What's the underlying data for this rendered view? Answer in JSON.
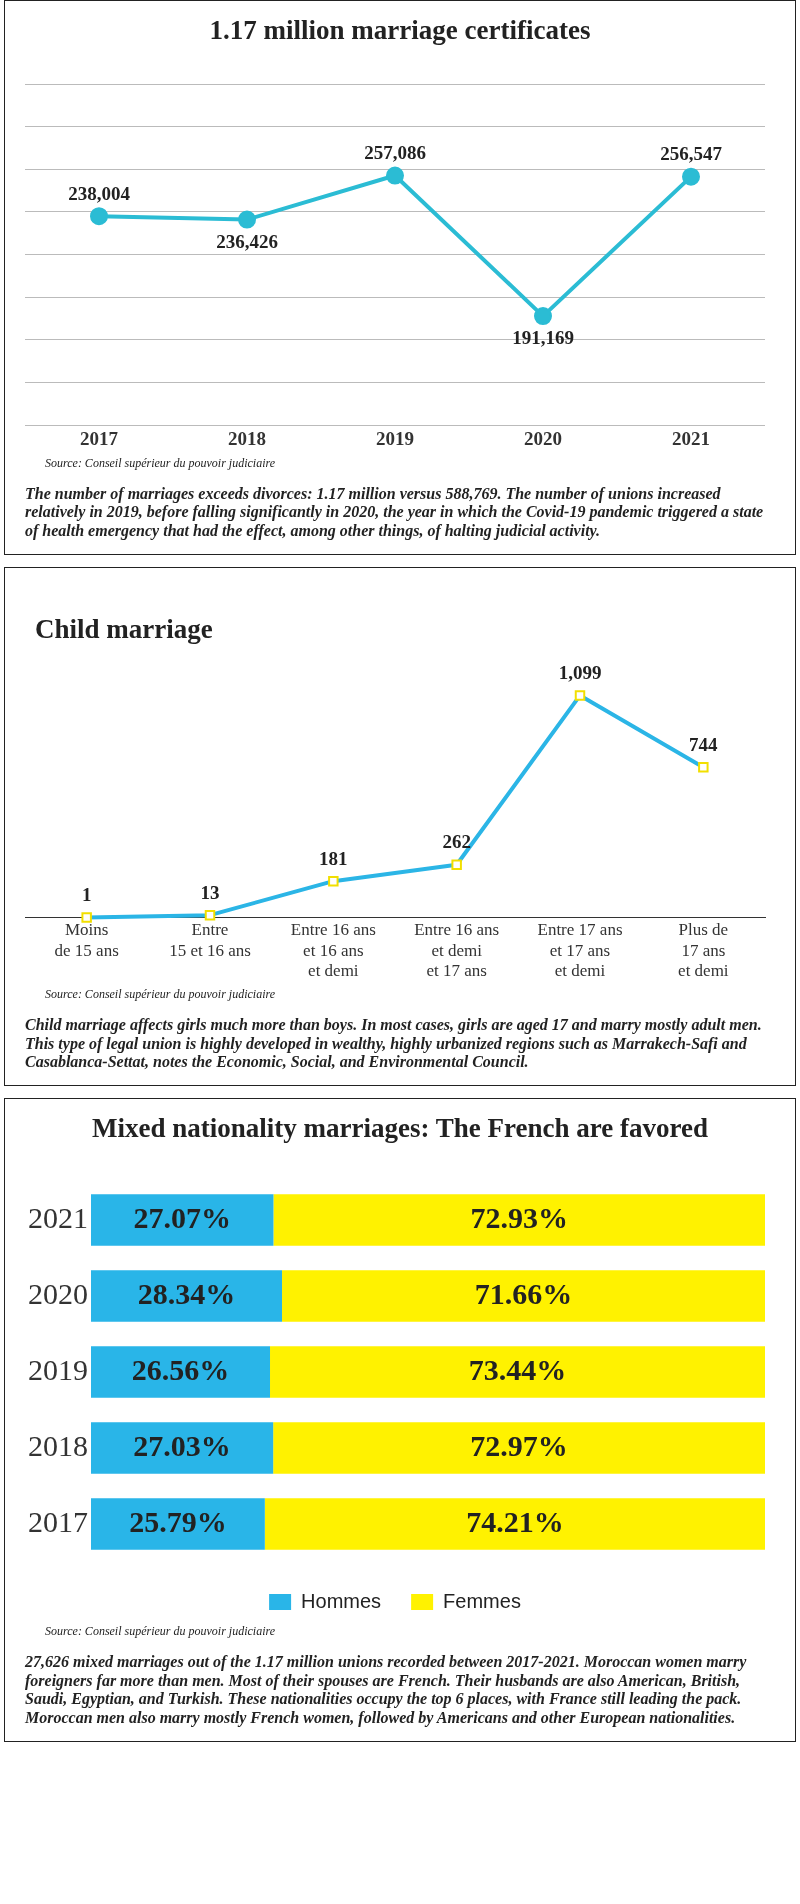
{
  "chart_data": [
    {
      "type": "line",
      "title": "1.17 million marriage certificates",
      "categories": [
        "2017",
        "2018",
        "2019",
        "2020",
        "2021"
      ],
      "series": [
        {
          "color": "#2bbcd4",
          "values": [
            238004,
            236426,
            257086,
            191169,
            256547
          ],
          "value_labels": [
            "238,004",
            "236,426",
            "257,086",
            "191,169",
            "256,547"
          ]
        }
      ],
      "tick_labels": "x",
      "grid": "y",
      "marker": "circle",
      "line_style": "solid",
      "legend": false,
      "annotations": [
        "Source: Conseil supérieur du pouvoir judiciaire",
        "The number of marriages exceeds divorces: 1.17 million versus 588,769. The number of unions increased relatively in 2019, before falling significantly in 2020, the year in which the Covid-19 pandemic triggered a state of health emergency that had the effect, among other things, of halting judicial activity."
      ]
    },
    {
      "type": "line",
      "title": "Child marriage",
      "categories": [
        "Moins\nde 15 ans",
        "Entre\n15 et 16 ans",
        "Entre 16 ans\net 16 ans\net demi",
        "Entre 16 ans\net demi\net 17 ans",
        "Entre 17 ans\net 17 ans\net demi",
        "Plus de\n17 ans\net demi"
      ],
      "series": [
        {
          "color": "#2bb5e6",
          "values": [
            1,
            13,
            181,
            262,
            1099,
            744
          ],
          "value_labels": [
            "1",
            "13",
            "181",
            "262",
            "1,099",
            "744"
          ]
        }
      ],
      "tick_labels": "x",
      "grid": false,
      "marker": "square",
      "line_style": "solid",
      "legend": false,
      "annotations": [
        "Source: Conseil supérieur du pouvoir judiciaire",
        "Child marriage affects girls much more than boys. In most cases, girls are aged 17 and marry mostly adult men. This type of legal union is highly developed in wealthy, highly urbanized regions such as Marrakech-Safi and Casablanca-Settat, notes the Economic, Social, and Environmental Council."
      ]
    },
    {
      "type": "bar",
      "orientation": "horizontal",
      "stacked": true,
      "title": "Mixed nationality marriages: The French are favored",
      "categories": [
        "2021",
        "2020",
        "2019",
        "2018",
        "2017"
      ],
      "series": [
        {
          "name": "Hommes",
          "color": "#29b5e8",
          "values": [
            27.07,
            28.34,
            26.56,
            27.03,
            25.79
          ],
          "value_labels": [
            "27.07%",
            "28.34%",
            "26.56%",
            "27.03%",
            "25.79%"
          ]
        },
        {
          "name": "Femmes",
          "color": "#fff200",
          "values": [
            72.93,
            71.66,
            73.44,
            72.97,
            74.21
          ],
          "value_labels": [
            "72.93%",
            "71.66%",
            "73.44%",
            "72.97%",
            "74.21%"
          ]
        }
      ],
      "xlim": [
        0,
        100
      ],
      "tick_labels": "y",
      "grid": false,
      "legend": "bottom",
      "annotations": [
        "Source: Conseil supérieur du pouvoir judiciaire",
        "27,626 mixed marriages out of the 1.17 million unions recorded between 2017-2021. Moroccan women marry foreigners far more than men. Most of their spouses are French. Their husbands are also American, British, Saudi, Egyptian, and Turkish. These nationalities occupy the top 6 places, with France still leading the pack. Moroccan men also marry mostly French women, followed by Americans and other European nationalities."
      ]
    }
  ]
}
